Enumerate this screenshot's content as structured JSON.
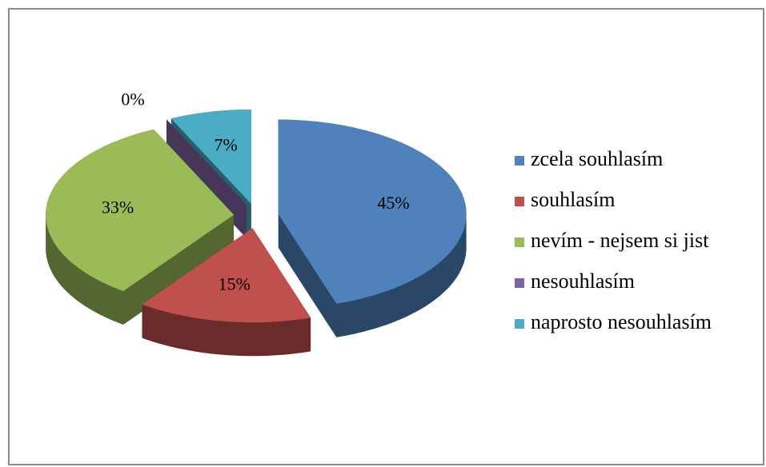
{
  "chart_data": {
    "type": "pie",
    "categories": [
      "zcela souhlasím",
      "souhlasím",
      "nevím - nejsem si jist",
      "nesouhlasím",
      "naprosto nesouhlasím"
    ],
    "values": [
      45,
      15,
      33,
      0,
      7
    ],
    "value_labels": [
      "45%",
      "15%",
      "33%",
      "0%",
      "7%"
    ],
    "colors": [
      "#4f81bd",
      "#c0504d",
      "#9bbb59",
      "#8064a2",
      "#4bacc6"
    ],
    "legend": "right"
  }
}
